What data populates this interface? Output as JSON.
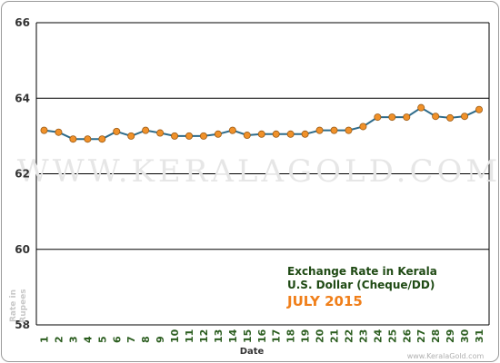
{
  "watermark": "WWW.KERALAGOLD.COM",
  "credit": "www.KeralaGold.com",
  "colors": {
    "line": "#2e6b8a",
    "marker": "#f0912a",
    "marker_edge": "#9a5a14",
    "grid": "#000000",
    "title_dark": "#1f4a14",
    "title_accent": "#f07f1a"
  },
  "chart_data": {
    "type": "line",
    "title_lines": [
      "Exchange Rate in Kerala",
      "U.S. Dollar (Cheque/DD)",
      "JULY 2015"
    ],
    "xlabel": "Date",
    "ylabel": "Rate in Rupees",
    "ylim": [
      58,
      66
    ],
    "yticks": [
      58,
      60,
      62,
      64,
      66
    ],
    "grid": true,
    "x": [
      1,
      2,
      3,
      4,
      5,
      6,
      7,
      8,
      9,
      10,
      11,
      12,
      13,
      14,
      15,
      16,
      17,
      18,
      19,
      20,
      21,
      22,
      23,
      24,
      25,
      26,
      27,
      28,
      29,
      30,
      31
    ],
    "series": [
      {
        "values": [
          63.15,
          63.1,
          62.92,
          62.92,
          62.92,
          63.12,
          63.0,
          63.15,
          63.08,
          63.0,
          63.0,
          63.0,
          63.05,
          63.15,
          63.02,
          63.05,
          63.05,
          63.05,
          63.05,
          63.15,
          63.15,
          63.15,
          63.25,
          63.5,
          63.5,
          63.5,
          63.75,
          63.52,
          63.48,
          63.52,
          63.7
        ]
      }
    ]
  }
}
